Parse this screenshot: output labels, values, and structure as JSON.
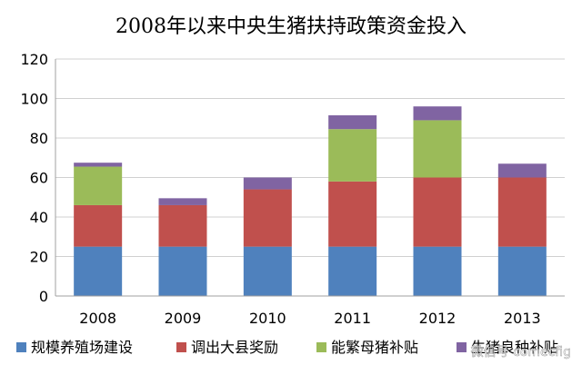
{
  "chart_data": {
    "type": "bar",
    "stacked": true,
    "title": "2008年以来中央生猪扶持政策资金投入",
    "categories": [
      "2008",
      "2009",
      "2010",
      "2011",
      "2012",
      "2013"
    ],
    "ylim": [
      0,
      120
    ],
    "yticks": [
      0,
      20,
      40,
      60,
      80,
      100,
      120
    ],
    "grid": true,
    "legend_position": "bottom",
    "series": [
      {
        "name": "规模养殖场建设",
        "color": "#4F81BD",
        "values": [
          25,
          25,
          25,
          25,
          25,
          25
        ]
      },
      {
        "name": "调出大县奖励",
        "color": "#C0504D",
        "values": [
          21,
          21,
          29,
          33,
          35,
          35
        ]
      },
      {
        "name": "能繁母猪补贴",
        "color": "#9BBB59",
        "values": [
          19.5,
          0,
          0,
          26.5,
          29,
          0
        ]
      },
      {
        "name": "生猪良种补贴",
        "color": "#8064A2",
        "values": [
          2,
          3.5,
          6,
          7,
          7,
          7
        ]
      }
    ]
  },
  "watermark_text": "微信号 comecfig"
}
